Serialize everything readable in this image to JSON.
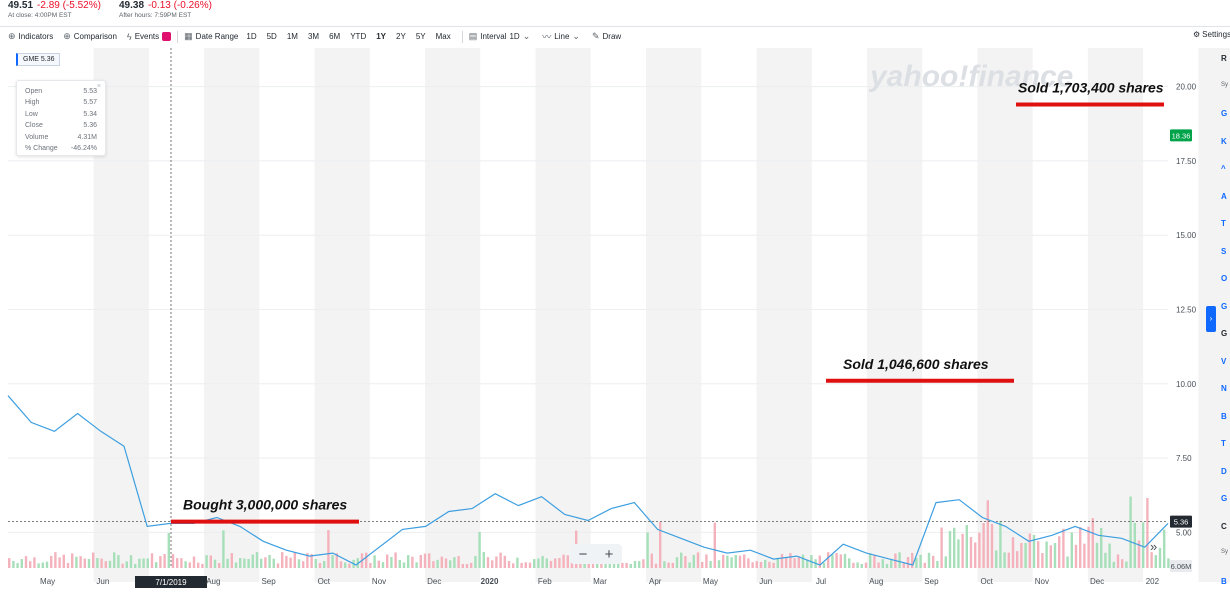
{
  "quote": {
    "price": "49.51",
    "change": "-2.89 (-5.52%)",
    "close_note": "At close: 4:00PM EST",
    "after_price": "49.38",
    "after_change": "-0.13 (-0.26%)",
    "after_note": "After hours: 7:59PM EST"
  },
  "toolbar": {
    "indicators": "Indicators",
    "comparison": "Comparison",
    "events": "Events",
    "date_range": "Date Range",
    "ranges": [
      "1D",
      "5D",
      "1M",
      "3M",
      "6M",
      "YTD",
      "1Y",
      "2Y",
      "5Y",
      "Max"
    ],
    "active_range": "1Y",
    "interval": "Interval",
    "interval_value": "1D",
    "line": "Line",
    "draw": "Draw",
    "settings": "Settings"
  },
  "ticker_pill": "GME 5.36",
  "ohlc": [
    {
      "label": "Open",
      "value": "5.53"
    },
    {
      "label": "High",
      "value": "5.57"
    },
    {
      "label": "Low",
      "value": "5.34"
    },
    {
      "label": "Close",
      "value": "5.36"
    },
    {
      "label": "Volume",
      "value": "4.31M"
    },
    {
      "label": "% Change",
      "value": "-46.24%"
    }
  ],
  "zoom": {
    "minus": "−",
    "plus": "+"
  },
  "scroll_right": "»",
  "side_toggle": "›",
  "sidebar_letters": [
    "R",
    "Sy",
    "G",
    "K",
    "^",
    "A",
    "T",
    "S",
    "O",
    "G",
    "G",
    "V",
    "N",
    "B",
    "T",
    "D",
    "G",
    "C",
    "Sy",
    "B"
  ],
  "chart_data": {
    "type": "line",
    "symbol": "GME",
    "x_labels": [
      "May",
      "Jun",
      "7/1/2019",
      "Aug",
      "Sep",
      "Oct",
      "Nov",
      "Dec",
      "2020",
      "Feb",
      "Mar",
      "Apr",
      "May",
      "Jun",
      "Jul",
      "Aug",
      "Sep",
      "Oct",
      "Nov",
      "Dec",
      "202"
    ],
    "y_ticks": [
      "20.00",
      "17.50",
      "15.00",
      "12.50",
      "10.00",
      "7.50",
      "5.00"
    ],
    "ylim": [
      3.8,
      21.3
    ],
    "crosshair_label": "7/1/2019",
    "current_price_tag": "18.36",
    "hover_price_tag": "5.36",
    "volume_tag": "6.06M",
    "watermark": "yahoo!finance",
    "series": [
      {
        "x": [
          0,
          0.02,
          0.04,
          0.06,
          0.08,
          0.1,
          0.12,
          0.14,
          0.16,
          0.18,
          0.2,
          0.22,
          0.24,
          0.26,
          0.28,
          0.3,
          0.32,
          0.34,
          0.36,
          0.38,
          0.4,
          0.42,
          0.44,
          0.46,
          0.48,
          0.5,
          0.52,
          0.54,
          0.56,
          0.58,
          0.6,
          0.62,
          0.64,
          0.66,
          0.68,
          0.7,
          0.72,
          0.74,
          0.76,
          0.78,
          0.8,
          0.82,
          0.84,
          0.86,
          0.88,
          0.9,
          0.92,
          0.94,
          0.96,
          0.98,
          1
        ],
        "values": [
          9.6,
          8.7,
          8.4,
          9.0,
          8.4,
          7.9,
          5.2,
          5.3,
          5.3,
          5.5,
          5.2,
          4.7,
          4.4,
          4.2,
          4.3,
          3.9,
          4.5,
          5.1,
          5.2,
          5.7,
          5.8,
          6.3,
          5.9,
          6.2,
          5.6,
          5.4,
          5.8,
          6.0,
          5.1,
          4.8,
          4.5,
          4.3,
          4.4,
          4.1,
          4.2,
          3.9,
          4.6,
          4.3,
          4.1,
          3.9,
          6.0,
          6.1,
          5.5,
          5.2,
          4.7,
          4.9,
          5.2,
          4.9,
          4.8,
          4.5,
          5.3
        ]
      }
    ],
    "annotations": [
      {
        "text": "Bought 3,000,000 shares",
        "y": 5.36
      },
      {
        "text": "Sold 1,046,600 shares",
        "y": 10.1
      },
      {
        "text": "Sold 1,703,400 shares",
        "y": 19.4
      }
    ]
  },
  "colors": {
    "line": "#3d9fe0",
    "annotation": "#e01010",
    "up_volume": "#a6dfb9",
    "down_volume": "#f4b3bc",
    "negative": "#eb0f29",
    "price_tag": "#00a34a"
  }
}
